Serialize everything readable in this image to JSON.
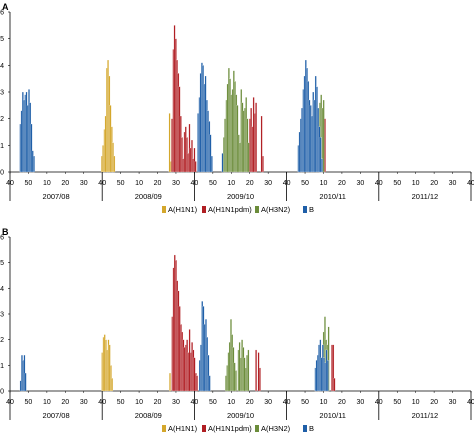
{
  "chart_data": [
    {
      "type": "bar",
      "panel_label": "A",
      "ylim": [
        0,
        6
      ],
      "y_ticks": [
        "0",
        "1",
        "2",
        "3",
        "4",
        "5",
        "6"
      ],
      "x_ticks": [
        "40",
        "50",
        "10",
        "20",
        "30",
        "40",
        "50",
        "10",
        "20",
        "30",
        "40",
        "50",
        "10",
        "20",
        "30",
        "40",
        "50",
        "10",
        "20",
        "30",
        "40",
        "50",
        "10",
        "20",
        "30",
        "40"
      ],
      "seasons": [
        "2007/08",
        "2008/09",
        "2009/10",
        "2010/11",
        "2011/12"
      ],
      "legend": [
        {
          "label": "A(H1N1)",
          "color": "#d4a72c"
        },
        {
          "label": "A(H1N1pdm)",
          "color": "#b01e23"
        },
        {
          "label": "A(H3N2)",
          "color": "#6b8c3a"
        },
        {
          "label": "B",
          "color": "#1f5fa8"
        }
      ],
      "series": [
        {
          "key": "H1N1",
          "points": [
            [
              51.4,
              0.6
            ],
            [
              52.1,
              1.0
            ],
            [
              52.8,
              1.6
            ],
            [
              53.5,
              2.1
            ],
            [
              54.2,
              3.9
            ],
            [
              54.9,
              4.2
            ],
            [
              55.6,
              3.6
            ],
            [
              56.3,
              2.5
            ],
            [
              57.0,
              1.7
            ],
            [
              57.7,
              1.1
            ],
            [
              58.4,
              0.6
            ],
            [
              89.6,
              2.2
            ],
            [
              90.3,
              0.4
            ]
          ]
        },
        {
          "key": "H1N1pdm",
          "points": [
            [
              91.0,
              2.0
            ],
            [
              91.7,
              4.6
            ],
            [
              92.4,
              5.5
            ],
            [
              93.1,
              5.0
            ],
            [
              93.8,
              4.2
            ],
            [
              94.5,
              3.7
            ],
            [
              95.2,
              3.2
            ],
            [
              95.9,
              2.1
            ],
            [
              96.6,
              1.3
            ],
            [
              97.3,
              0.5
            ],
            [
              98.0,
              1.5
            ],
            [
              98.7,
              1.7
            ],
            [
              99.4,
              1.3
            ],
            [
              100.1,
              0.7
            ],
            [
              100.8,
              1.8
            ],
            [
              101.5,
              0.9
            ],
            [
              102.2,
              1.2
            ],
            [
              102.9,
              0.5
            ],
            [
              103.6,
              0.9
            ],
            [
              104.3,
              0.4
            ],
            [
              134.9,
              2.0
            ],
            [
              135.6,
              2.4
            ],
            [
              136.3,
              1.7
            ],
            [
              137.0,
              2.8
            ],
            [
              137.7,
              2.2
            ],
            [
              138.4,
              2.6
            ],
            [
              141.5,
              2.1
            ],
            [
              142.2,
              0.6
            ],
            [
              176.5,
              2.3
            ],
            [
              177.2,
              2.0
            ]
          ]
        },
        {
          "key": "H3N2",
          "points": [
            [
              120.2,
              1.3
            ],
            [
              120.9,
              2.0
            ],
            [
              121.6,
              2.7
            ],
            [
              122.3,
              3.3
            ],
            [
              123.0,
              3.9
            ],
            [
              123.7,
              3.5
            ],
            [
              124.4,
              2.9
            ],
            [
              125.1,
              3.1
            ],
            [
              125.8,
              3.8
            ],
            [
              126.5,
              3.4
            ],
            [
              127.2,
              2.9
            ],
            [
              127.9,
              2.5
            ],
            [
              128.6,
              1.4
            ],
            [
              129.3,
              1.1
            ],
            [
              130.0,
              3.1
            ],
            [
              130.7,
              2.6
            ],
            [
              131.4,
              2.3
            ],
            [
              132.1,
              2.4
            ],
            [
              132.8,
              2.8
            ],
            [
              133.5,
              2.0
            ],
            [
              134.2,
              1.1
            ],
            [
              174.4,
              2.6
            ],
            [
              175.1,
              2.9
            ],
            [
              175.8,
              2.4
            ],
            [
              176.5,
              2.7
            ]
          ]
        },
        {
          "key": "B",
          "points": [
            [
              5.4,
              1.8
            ],
            [
              6.1,
              2.3
            ],
            [
              6.8,
              3.0
            ],
            [
              7.5,
              2.7
            ],
            [
              8.2,
              2.9
            ],
            [
              8.9,
              3.0
            ],
            [
              9.6,
              2.5
            ],
            [
              10.3,
              3.1
            ],
            [
              11.0,
              2.6
            ],
            [
              11.7,
              1.8
            ],
            [
              12.4,
              0.8
            ],
            [
              13.1,
              0.6
            ],
            [
              105.7,
              2.2
            ],
            [
              106.4,
              2.8
            ],
            [
              107.1,
              3.7
            ],
            [
              107.8,
              4.1
            ],
            [
              108.5,
              4.0
            ],
            [
              109.2,
              3.3
            ],
            [
              109.9,
              3.6
            ],
            [
              110.6,
              2.7
            ],
            [
              111.3,
              2.3
            ],
            [
              112.0,
              1.9
            ],
            [
              112.7,
              1.4
            ],
            [
              113.4,
              0.6
            ],
            [
              119.4,
              0.7
            ],
            [
              162.2,
              1.0
            ],
            [
              162.9,
              1.5
            ],
            [
              163.6,
              2.0
            ],
            [
              164.3,
              2.4
            ],
            [
              165.0,
              3.1
            ],
            [
              165.7,
              3.6
            ],
            [
              166.4,
              4.2
            ],
            [
              167.1,
              3.9
            ],
            [
              167.8,
              3.4
            ],
            [
              168.5,
              2.7
            ],
            [
              169.2,
              2.5
            ],
            [
              169.9,
              2.1
            ],
            [
              170.6,
              3.0
            ],
            [
              171.3,
              2.7
            ],
            [
              172.0,
              3.6
            ],
            [
              172.7,
              3.2
            ],
            [
              173.4,
              2.4
            ],
            [
              174.1,
              1.7
            ],
            [
              174.8,
              1.3
            ],
            [
              175.5,
              0.5
            ]
          ]
        }
      ]
    },
    {
      "type": "bar",
      "panel_label": "B",
      "ylim": [
        0,
        6
      ],
      "y_ticks": [
        "0",
        "1",
        "2",
        "3",
        "4",
        "5",
        "6"
      ],
      "x_ticks": [
        "40",
        "50",
        "10",
        "20",
        "30",
        "40",
        "50",
        "10",
        "20",
        "30",
        "40",
        "50",
        "10",
        "20",
        "30",
        "40",
        "50",
        "10",
        "20",
        "30",
        "40",
        "50",
        "10",
        "20",
        "30",
        "40"
      ],
      "seasons": [
        "2007/08",
        "2008/09",
        "2009/10",
        "2010/11",
        "2011/12"
      ],
      "legend": [
        {
          "label": "A(H1N1)",
          "color": "#d4a72c"
        },
        {
          "label": "A(H1N1pdm)",
          "color": "#b01e23"
        },
        {
          "label": "A(H3N2)",
          "color": "#6b8c3a"
        },
        {
          "label": "B",
          "color": "#1f5fa8"
        }
      ],
      "series": [
        {
          "key": "H1N1",
          "points": [
            [
              51.6,
              1.5
            ],
            [
              52.3,
              2.1
            ],
            [
              53.0,
              2.2
            ],
            [
              53.7,
              2.0
            ],
            [
              54.4,
              1.6
            ],
            [
              55.1,
              2.0
            ],
            [
              55.8,
              1.8
            ],
            [
              56.5,
              1.0
            ],
            [
              57.2,
              0.5
            ],
            [
              89.8,
              0.7
            ]
          ]
        },
        {
          "key": "H1N1pdm",
          "points": [
            [
              91.1,
              2.9
            ],
            [
              91.8,
              4.8
            ],
            [
              92.5,
              5.3
            ],
            [
              93.2,
              5.1
            ],
            [
              93.9,
              4.3
            ],
            [
              94.6,
              3.9
            ],
            [
              95.3,
              3.3
            ],
            [
              96.0,
              2.6
            ],
            [
              96.7,
              2.3
            ],
            [
              97.4,
              2.0
            ],
            [
              98.1,
              1.7
            ],
            [
              98.8,
              1.8
            ],
            [
              99.5,
              2.0
            ],
            [
              100.2,
              1.5
            ],
            [
              100.9,
              2.4
            ],
            [
              101.6,
              1.5
            ],
            [
              102.3,
              1.9
            ],
            [
              103.0,
              1.6
            ],
            [
              103.7,
              1.3
            ],
            [
              104.4,
              0.7
            ],
            [
              105.1,
              0.6
            ],
            [
              138.4,
              1.6
            ],
            [
              139.8,
              1.5
            ],
            [
              140.5,
              0.9
            ],
            [
              181.2,
              1.8
            ],
            [
              181.9,
              1.8
            ],
            [
              182.6,
              0.5
            ]
          ]
        },
        {
          "key": "H3N2",
          "points": [
            [
              121.4,
              0.6
            ],
            [
              122.1,
              1.0
            ],
            [
              122.8,
              1.5
            ],
            [
              123.5,
              1.9
            ],
            [
              124.2,
              2.8
            ],
            [
              124.9,
              2.2
            ],
            [
              125.6,
              1.7
            ],
            [
              126.3,
              1.1
            ],
            [
              127.0,
              0.8
            ],
            [
              128.4,
              1.6
            ],
            [
              129.1,
              1.9
            ],
            [
              129.8,
              1.3
            ],
            [
              130.5,
              2.0
            ],
            [
              131.2,
              1.7
            ],
            [
              131.9,
              1.3
            ],
            [
              132.6,
              0.9
            ],
            [
              133.3,
              1.4
            ],
            [
              134.0,
              1.6
            ],
            [
              176.5,
              2.3
            ],
            [
              177.2,
              2.9
            ],
            [
              177.9,
              2.0
            ],
            [
              178.6,
              1.8
            ],
            [
              179.3,
              2.5
            ]
          ]
        },
        {
          "key": "B",
          "points": [
            [
              5.6,
              0.4
            ],
            [
              6.3,
              1.4
            ],
            [
              7.0,
              1.2
            ],
            [
              7.7,
              1.4
            ],
            [
              8.4,
              0.7
            ],
            [
              106.6,
              1.2
            ],
            [
              107.3,
              1.8
            ],
            [
              108.0,
              3.5
            ],
            [
              108.7,
              3.3
            ],
            [
              109.4,
              2.6
            ],
            [
              110.1,
              2.8
            ],
            [
              110.8,
              2.1
            ],
            [
              111.5,
              1.4
            ],
            [
              112.2,
              0.6
            ],
            [
              171.8,
              0.9
            ],
            [
              172.5,
              1.2
            ],
            [
              173.2,
              1.4
            ],
            [
              173.9,
              1.8
            ],
            [
              174.6,
              2.0
            ],
            [
              175.3,
              1.3
            ],
            [
              176.0,
              1.8
            ],
            [
              176.7,
              1.3
            ],
            [
              177.4,
              1.1
            ],
            [
              178.1,
              1.6
            ],
            [
              178.8,
              1.2
            ]
          ]
        }
      ]
    }
  ]
}
